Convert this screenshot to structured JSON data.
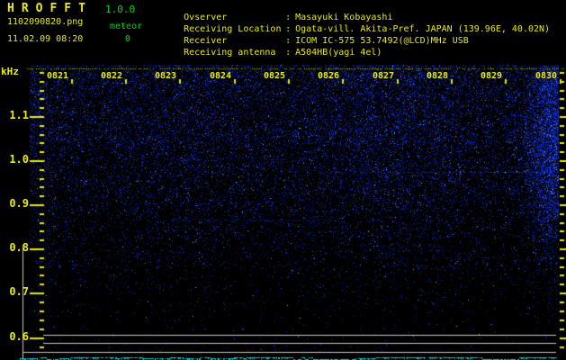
{
  "header": {
    "app_title": "HROFFT",
    "version": "1.0.0",
    "filename": "1102090820.png",
    "meteor_label": "meteor",
    "meteor_count": "0",
    "datetime": "11.02.09 08:20",
    "info_rows": [
      {
        "label": "Ovserver",
        "separator": ":",
        "value": "Masayuki Kobayashi"
      },
      {
        "label": "Receiving Location",
        "separator": ":",
        "value": "Ogata-vill. Akita-Pref. JAPAN (139.96E, 40.02N)"
      },
      {
        "label": "Receiver",
        "separator": ":",
        "value": "ICOM IC-575 53.7492(@LCD)MHz USB"
      },
      {
        "label": "Receiving antenna",
        "separator": ":",
        "value": "A504HB(yagi 4el)"
      }
    ]
  },
  "spectrogram": {
    "freq_axis_unit": "kHz",
    "freq_labels": [
      "1.1",
      "1.0",
      "0.9",
      "0.8",
      "0.7",
      "0.6"
    ],
    "time_labels": [
      "0821",
      "0822",
      "0823",
      "0824",
      "0825",
      "0826",
      "0827",
      "0828",
      "0829",
      "0830"
    ]
  },
  "colors": {
    "text_yellow": "#ecec00",
    "text_green": "#00dc00",
    "tick_yellow": "#e8e800",
    "noise_blue": "#2040c0",
    "grid_gray": "#c8c8c8",
    "trace_cyan": "#00c8c8",
    "background": "#000000"
  }
}
